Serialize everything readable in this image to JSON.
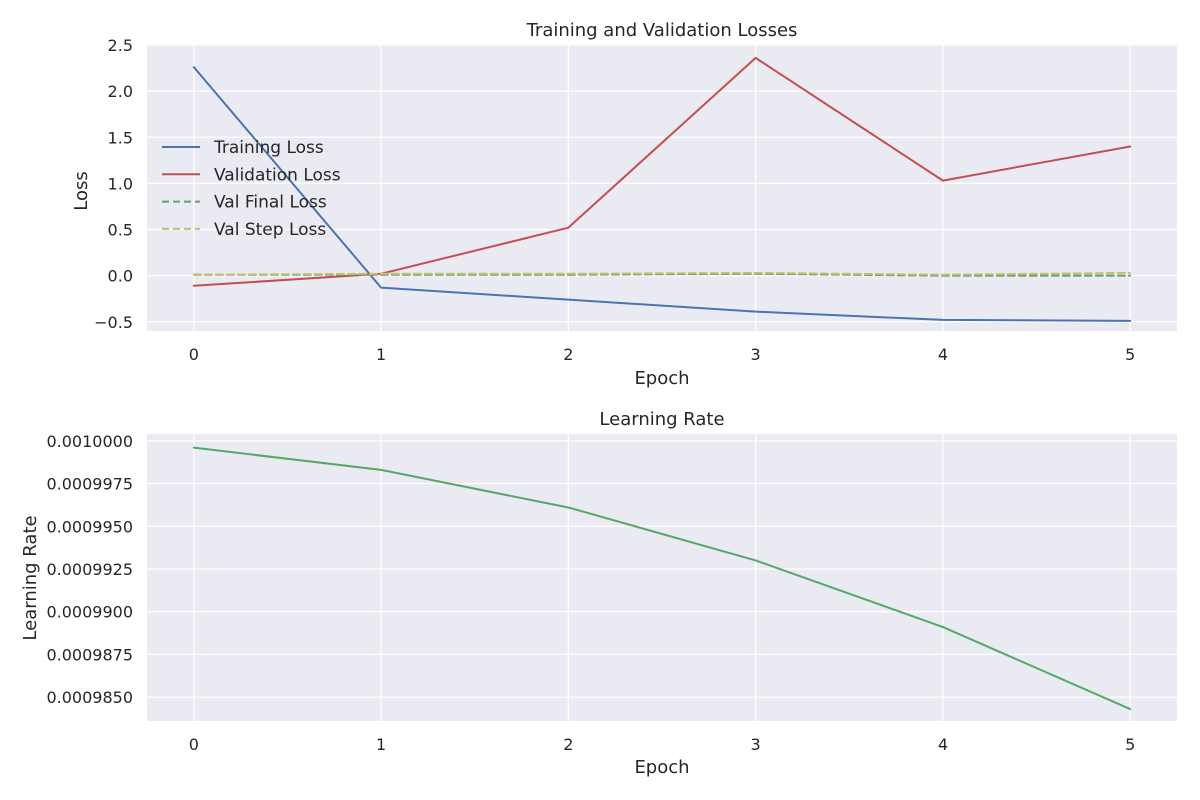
{
  "chart_data": [
    {
      "type": "line",
      "title": "Training and Validation Losses",
      "xlabel": "Epoch",
      "ylabel": "Loss",
      "x": [
        0,
        1,
        2,
        3,
        4,
        5
      ],
      "xlim": [
        -0.25,
        5.25
      ],
      "ylim": [
        -0.6,
        2.5
      ],
      "xticks": [
        "0",
        "1",
        "2",
        "3",
        "4",
        "5"
      ],
      "yticks": [
        -0.5,
        0.0,
        0.5,
        1.0,
        1.5,
        2.0,
        2.5
      ],
      "ytick_labels": [
        "−0.5",
        "0.0",
        "0.5",
        "1.0",
        "1.5",
        "2.0",
        "2.5"
      ],
      "grid": true,
      "legend_position": "center-left",
      "series": [
        {
          "name": "Training Loss",
          "color": "#4c72b0",
          "dash": "solid",
          "values": [
            2.26,
            -0.13,
            -0.26,
            -0.39,
            -0.48,
            -0.49
          ]
        },
        {
          "name": "Validation Loss",
          "color": "#c44e52",
          "dash": "solid",
          "values": [
            -0.11,
            0.02,
            0.52,
            2.36,
            1.03,
            1.4
          ]
        },
        {
          "name": "Val Final Loss",
          "color": "#55a868",
          "dash": "dashed",
          "values": [
            0.01,
            0.01,
            0.01,
            0.02,
            0.0,
            0.0
          ]
        },
        {
          "name": "Val Step Loss",
          "color": "#ccb974",
          "dash": "dashed",
          "values": [
            0.01,
            0.02,
            0.02,
            0.03,
            0.01,
            0.03
          ]
        }
      ]
    },
    {
      "type": "line",
      "title": "Learning Rate",
      "xlabel": "Epoch",
      "ylabel": "Learning Rate",
      "x": [
        0,
        1,
        2,
        3,
        4,
        5
      ],
      "xlim": [
        -0.25,
        5.25
      ],
      "ylim": [
        0.0009836,
        0.0010004
      ],
      "xticks": [
        "0",
        "1",
        "2",
        "3",
        "4",
        "5"
      ],
      "yticks": [
        0.000985,
        0.0009875,
        0.00099,
        0.0009925,
        0.000995,
        0.0009975,
        0.001
      ],
      "ytick_labels": [
        "0.0009850",
        "0.0009875",
        "0.0009900",
        "0.0009925",
        "0.0009950",
        "0.0009975",
        "0.0010000"
      ],
      "grid": true,
      "series": [
        {
          "color": "#55a868",
          "dash": "solid",
          "values": [
            0.0009996,
            0.0009983,
            0.0009961,
            0.000993,
            0.0009891,
            0.0009843
          ]
        }
      ]
    }
  ]
}
